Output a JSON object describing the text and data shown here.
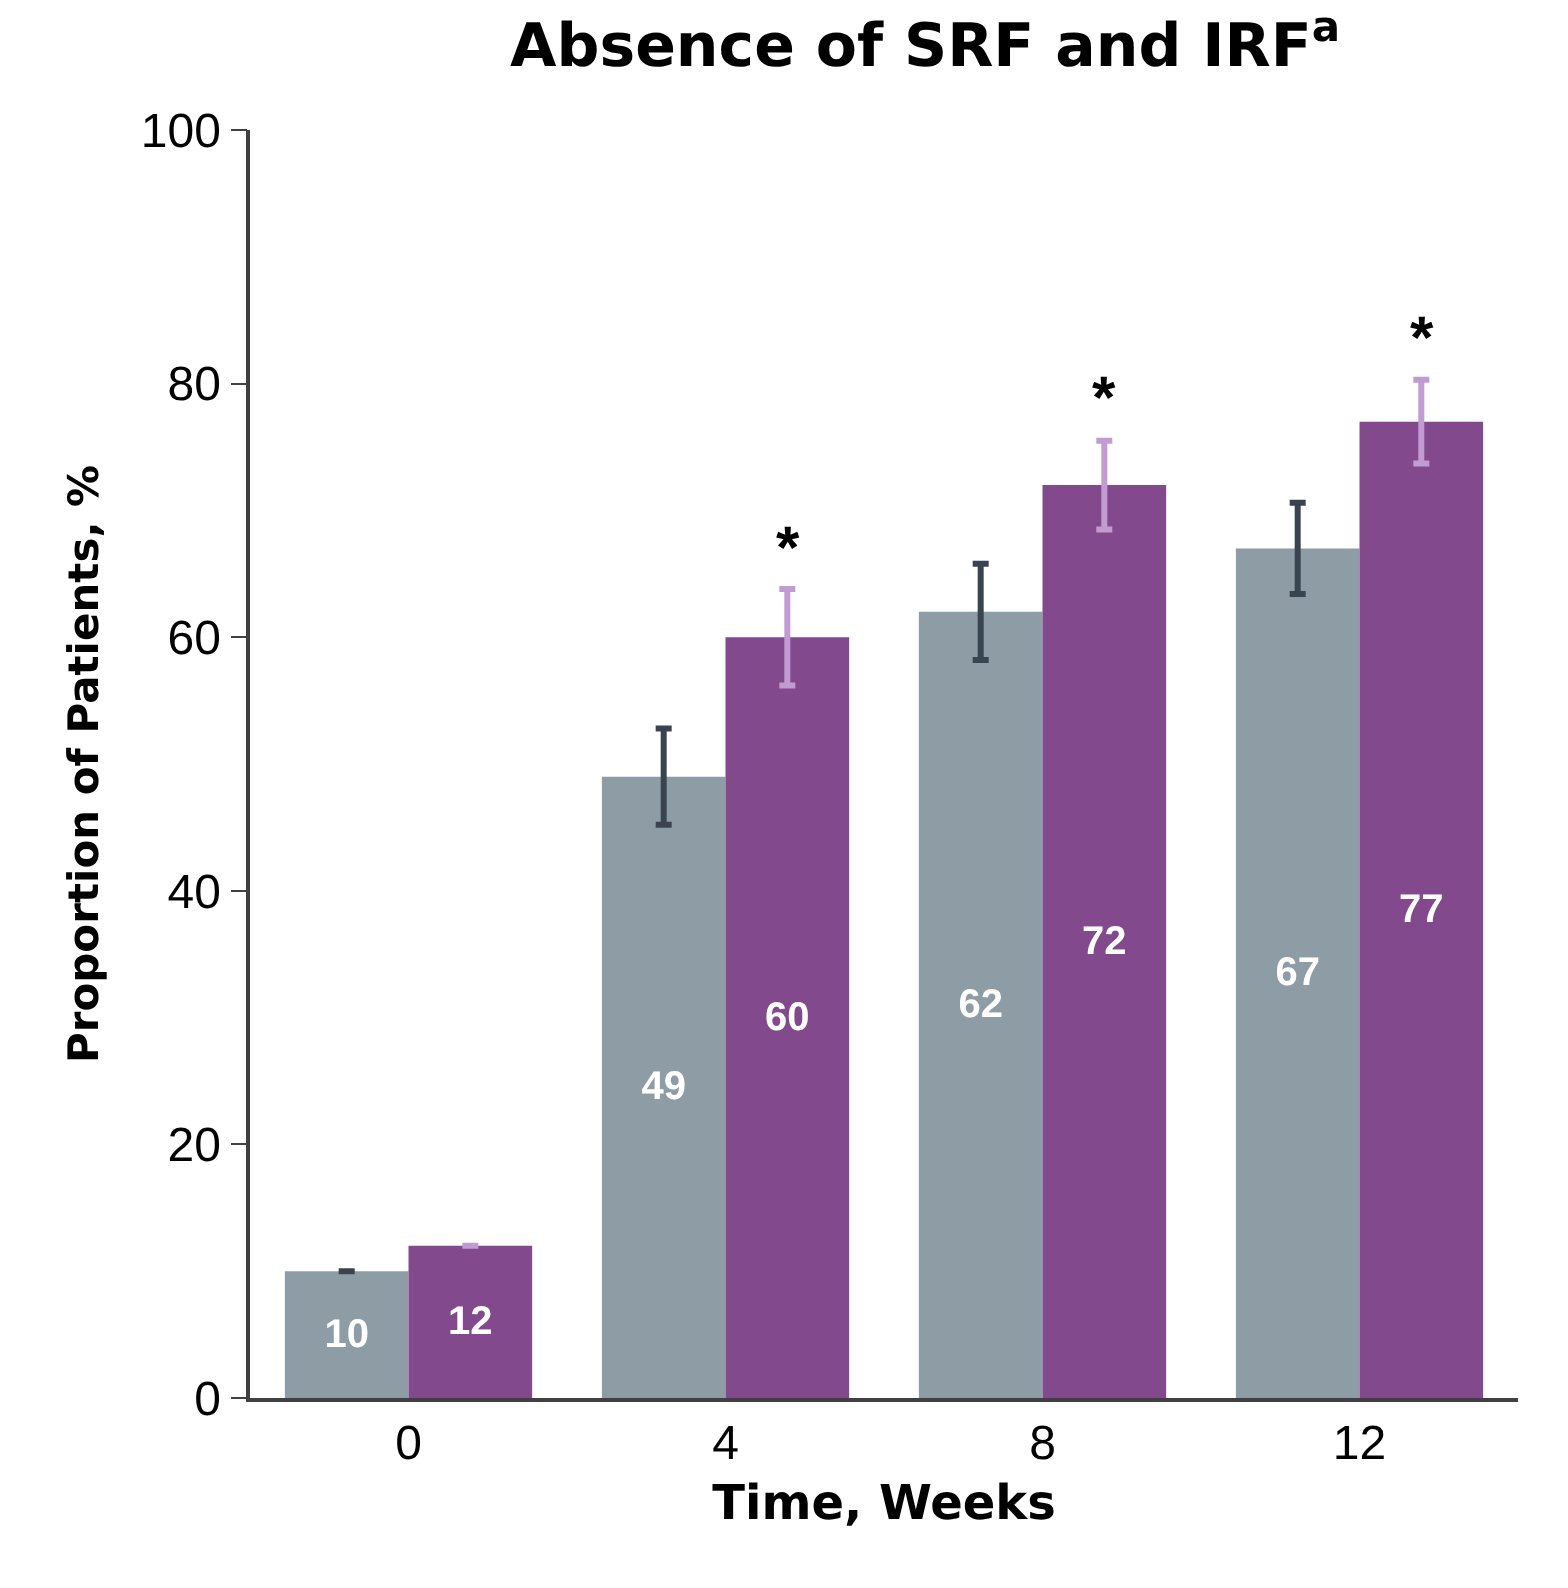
{
  "chart_data": {
    "type": "bar",
    "title": "Absence of SRF and IRF$^{a}$",
    "xlabel": "Time, Weeks",
    "ylabel": "Proportion of Patients, %",
    "categories": [
      "0",
      "4",
      "8",
      "12"
    ],
    "series": [
      {
        "color": "#8e9ca6",
        "values": [
          10,
          49,
          62,
          67
        ],
        "errors": [
          null,
          3.8,
          3.8,
          3.6
        ]
      },
      {
        "color": "#824a8c",
        "values": [
          12,
          60,
          72,
          77
        ],
        "errors": [
          null,
          3.8,
          3.5,
          3.3
        ]
      }
    ],
    "ylim": [
      0,
      100
    ],
    "yticks": [
      0,
      20,
      40,
      60,
      80,
      100
    ],
    "legend": false,
    "data_labels": true,
    "annotations": [
      {
        "text": "*",
        "x": "4",
        "y": 60
      },
      {
        "text": "*",
        "x": "8",
        "y": 72
      },
      {
        "text": "*",
        "x": "12",
        "y": 77
      }
    ]
  }
}
